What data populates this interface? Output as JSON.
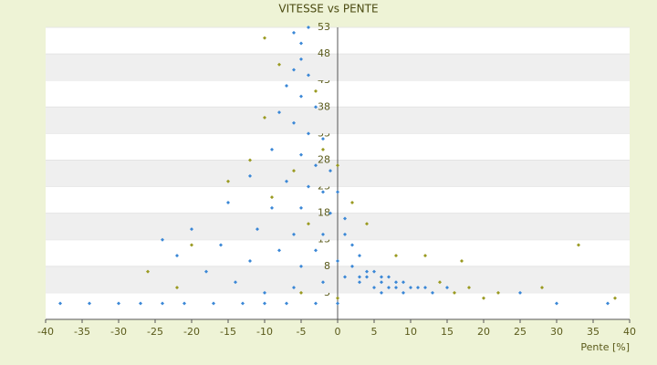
{
  "chart_data": {
    "type": "scatter",
    "title": "VITESSE vs PENTE",
    "x_label": "Pente [%]",
    "xlim": [
      -40,
      40
    ],
    "xticks": [
      -40,
      -35,
      -30,
      -25,
      -20,
      -15,
      -10,
      -5,
      0,
      5,
      10,
      15,
      20,
      25,
      30,
      35,
      40
    ],
    "ylim": [
      -2,
      53
    ],
    "yticks": [
      3,
      8,
      13,
      18,
      23,
      28,
      33,
      38,
      43,
      48,
      53
    ],
    "grid": "bands",
    "series": [
      {
        "color": "#3a87d6",
        "x": [
          -38,
          -34,
          -30,
          -27,
          -24,
          -21,
          -17,
          -13,
          -10,
          -7,
          -3,
          0,
          30,
          37,
          -6,
          -5,
          -4,
          -5,
          -6,
          -4,
          -7,
          -5,
          -3,
          -8,
          -6,
          -4,
          -2,
          -9,
          -5,
          -3,
          -1,
          -12,
          -7,
          -4,
          -2,
          0,
          -15,
          -9,
          -5,
          -1,
          1,
          -20,
          -11,
          -6,
          -2,
          1,
          2,
          -24,
          -16,
          -8,
          -3,
          3,
          -12,
          -5,
          0,
          2,
          4,
          5,
          6,
          7,
          8,
          9,
          10,
          11,
          3,
          4,
          6,
          7,
          8,
          12,
          13,
          5,
          6,
          9,
          -10,
          -6,
          -2,
          1,
          3,
          -14,
          -18,
          -22,
          15,
          25
        ],
        "values": [
          1,
          1,
          1,
          1,
          1,
          1,
          1,
          1,
          1,
          1,
          1,
          1,
          1,
          1,
          52,
          50,
          53,
          47,
          45,
          44,
          42,
          40,
          38,
          37,
          35,
          33,
          32,
          30,
          29,
          27,
          26,
          25,
          24,
          23,
          22,
          22,
          20,
          19,
          19,
          18,
          17,
          15,
          15,
          14,
          14,
          14,
          12,
          13,
          12,
          11,
          11,
          10,
          9,
          8,
          9,
          8,
          7,
          7,
          6,
          6,
          5,
          5,
          4,
          4,
          5,
          6,
          5,
          4,
          4,
          4,
          3,
          4,
          3,
          3,
          3,
          4,
          5,
          6,
          6,
          5,
          7,
          10,
          4,
          3
        ]
      },
      {
        "color": "#9a9a20",
        "x": [
          -10,
          -8,
          -3,
          -10,
          -2,
          -12,
          -6,
          0,
          2,
          -9,
          -15,
          -4,
          4,
          -20,
          -26,
          -22,
          8,
          12,
          17,
          14,
          18,
          22,
          28,
          33,
          38,
          20,
          0,
          -5,
          16
        ],
        "values": [
          51,
          46,
          41,
          36,
          30,
          28,
          26,
          27,
          20,
          21,
          24,
          16,
          16,
          12,
          7,
          4,
          10,
          10,
          9,
          5,
          4,
          3,
          4,
          12,
          2,
          2,
          2,
          3,
          3
        ]
      }
    ]
  }
}
